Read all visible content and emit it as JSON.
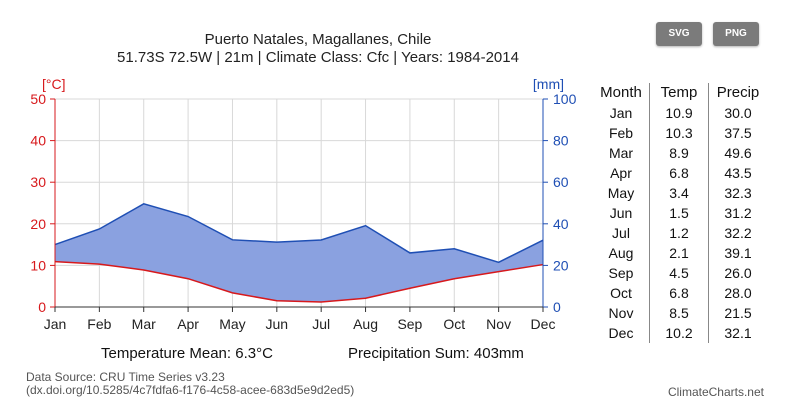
{
  "title_line1": "Puerto Natales, Magallanes, Chile",
  "title_line2": "51.73S 72.5W | 21m | Climate Class: Cfc | Years: 1984-2014",
  "buttons": {
    "svg": "SVG",
    "png": "PNG"
  },
  "summary": {
    "temp_mean": "Temperature Mean: 6.3°C",
    "precip_sum": "Precipitation Sum: 403mm"
  },
  "footer": {
    "source_line1": "Data Source: CRU Time Series v3.23",
    "source_line2": "(dx.doi.org/10.5285/4c7fdfa6-f176-4c58-acee-683d5e9d2ed5)",
    "site": "ClimateCharts.net"
  },
  "table": {
    "headers": [
      "Month",
      "Temp",
      "Precip"
    ],
    "rows": [
      [
        "Jan",
        "10.9",
        "30.0"
      ],
      [
        "Feb",
        "10.3",
        "37.5"
      ],
      [
        "Mar",
        "8.9",
        "49.6"
      ],
      [
        "Apr",
        "6.8",
        "43.5"
      ],
      [
        "May",
        "3.4",
        "32.3"
      ],
      [
        "Jun",
        "1.5",
        "31.2"
      ],
      [
        "Jul",
        "1.2",
        "32.2"
      ],
      [
        "Aug",
        "2.1",
        "39.1"
      ],
      [
        "Sep",
        "4.5",
        "26.0"
      ],
      [
        "Oct",
        "6.8",
        "28.0"
      ],
      [
        "Nov",
        "8.5",
        "21.5"
      ],
      [
        "Dec",
        "10.2",
        "32.1"
      ]
    ]
  },
  "colors": {
    "temperature": "#d7191c",
    "precipitation": "#1f4fb4",
    "fill": "#8aa1e0"
  },
  "chart_data": {
    "type": "line",
    "categories": [
      "Jan",
      "Feb",
      "Mar",
      "Apr",
      "May",
      "Jun",
      "Jul",
      "Aug",
      "Sep",
      "Oct",
      "Nov",
      "Dec"
    ],
    "series": [
      {
        "values": [
          10.9,
          10.3,
          8.9,
          6.8,
          3.4,
          1.5,
          1.2,
          2.1,
          4.5,
          6.8,
          8.5,
          10.2
        ],
        "axis": "left"
      },
      {
        "values": [
          30.0,
          37.5,
          49.6,
          43.5,
          32.3,
          31.2,
          32.2,
          39.1,
          26.0,
          28.0,
          21.5,
          32.1
        ],
        "axis": "right"
      }
    ],
    "ylabel_left": "[°C]",
    "ylabel_right": "[mm]",
    "ylim_left": [
      0,
      50
    ],
    "ylim_right": [
      0,
      100
    ],
    "yticks_left": [
      "0",
      "10",
      "20",
      "30",
      "40",
      "50"
    ],
    "yticks_right": [
      "0",
      "20",
      "40",
      "60",
      "80",
      "100"
    ],
    "grid": true,
    "fill_between": "area between temperature and precipitation curves"
  }
}
